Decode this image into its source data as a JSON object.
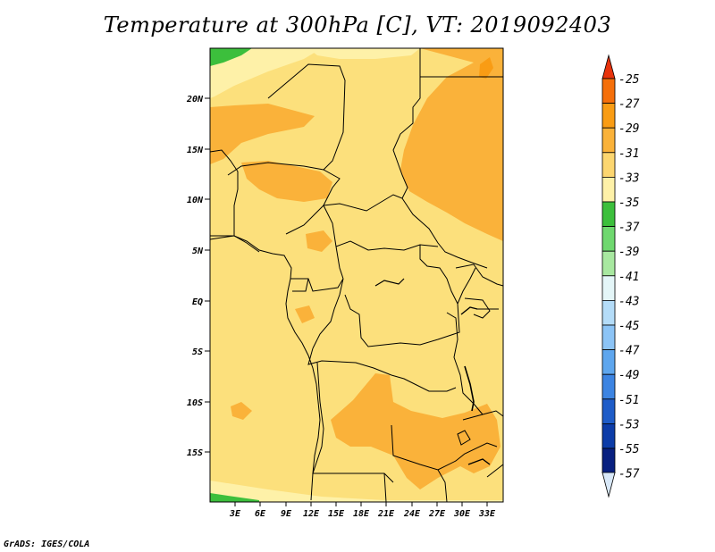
{
  "title": "Temperature at 300hPa [C], VT: 2019092403",
  "credit": "GrADS: IGES/COLA",
  "lat_labels": [
    "20N",
    "15N",
    "10N",
    "5N",
    "EQ",
    "5S",
    "10S",
    "15S"
  ],
  "lon_labels": [
    "3E",
    "6E",
    "9E",
    "12E",
    "15E",
    "18E",
    "21E",
    "24E",
    "27E",
    "30E",
    "33E"
  ],
  "colorbar": {
    "labels": [
      "-25",
      "-27",
      "-29",
      "-31",
      "-33",
      "-35",
      "-37",
      "-39",
      "-41",
      "-43",
      "-45",
      "-47",
      "-49",
      "-51",
      "-53",
      "-55",
      "-57"
    ],
    "colors": [
      "#e8330c",
      "#f56f0a",
      "#f99c14",
      "#fab23a",
      "#fcd670",
      "#fef1a8",
      "#3cbf3c",
      "#6fd86f",
      "#a8e8a0",
      "#e4f6f8",
      "#b4dcf8",
      "#8cc4f6",
      "#5ea6ee",
      "#3c84e2",
      "#1e5cc8",
      "#0c3ca8",
      "#082080"
    ],
    "top_color": "#e8330c",
    "bottom_color": "#d8e8f8"
  },
  "colors": {
    "base_fill": "#fce07c",
    "warm_fill": "#fab23a",
    "cool_fill": "#fef1a8",
    "green_fill": "#3cbf3c",
    "border": "#000000"
  }
}
